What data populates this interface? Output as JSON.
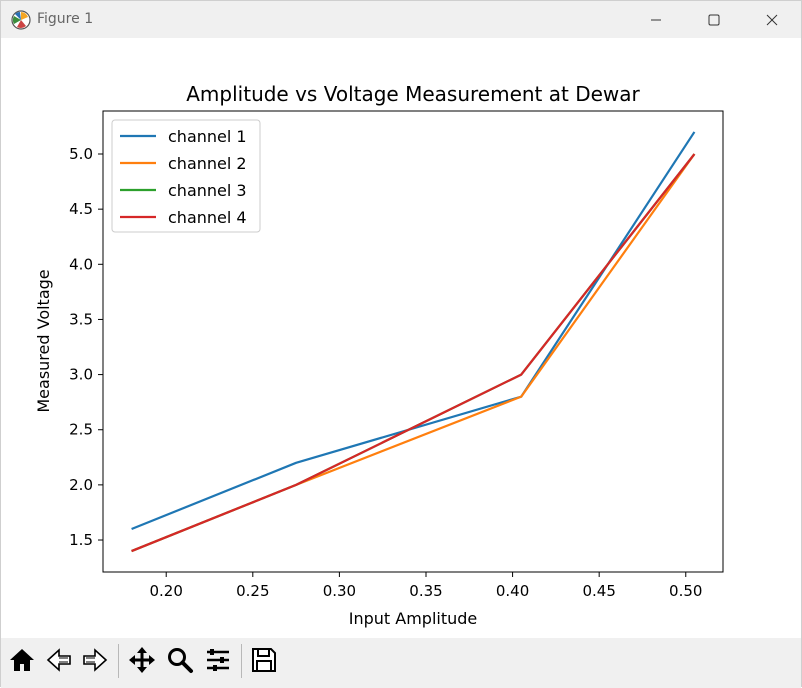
{
  "window": {
    "title": "Figure 1",
    "minimize_icon": "minimize-icon",
    "maximize_icon": "maximize-icon",
    "close_icon": "close-icon"
  },
  "toolbar": {
    "items": [
      {
        "name": "home-button",
        "icon": "home-icon"
      },
      {
        "name": "back-button",
        "icon": "arrow-left-icon"
      },
      {
        "name": "forward-button",
        "icon": "arrow-right-icon"
      },
      {
        "name": "pan-button",
        "icon": "move-icon"
      },
      {
        "name": "zoom-button",
        "icon": "magnifier-icon"
      },
      {
        "name": "configure-subplots-button",
        "icon": "sliders-icon"
      },
      {
        "name": "save-button",
        "icon": "floppy-disk-icon"
      }
    ]
  },
  "chart_data": {
    "type": "line",
    "title": "Amplitude vs Voltage Measurement at Dewar",
    "xlabel": "Input Amplitude",
    "ylabel": "Measured Voltage",
    "xlim": [
      0.1635,
      0.5215
    ],
    "ylim": [
      1.21,
      5.39
    ],
    "xticks": [
      0.2,
      0.25,
      0.3,
      0.35,
      0.4,
      0.45,
      0.5
    ],
    "xtick_labels": [
      "0.20",
      "0.25",
      "0.30",
      "0.35",
      "0.40",
      "0.45",
      "0.50"
    ],
    "yticks": [
      1.5,
      2.0,
      2.5,
      3.0,
      3.5,
      4.0,
      4.5,
      5.0
    ],
    "ytick_labels": [
      "1.5",
      "2.0",
      "2.5",
      "3.0",
      "3.5",
      "4.0",
      "4.5",
      "5.0"
    ],
    "grid": false,
    "legend_position": "upper-left",
    "series": [
      {
        "name": "channel 1",
        "color": "#1f77b4",
        "x": [
          0.18,
          0.275,
          0.405,
          0.505
        ],
        "y": [
          1.6,
          2.2,
          2.8,
          5.2
        ]
      },
      {
        "name": "channel 2",
        "color": "#ff7f0e",
        "x": [
          0.18,
          0.275,
          0.405,
          0.505
        ],
        "y": [
          1.4,
          2.0,
          2.8,
          5.0
        ]
      },
      {
        "name": "channel 3",
        "color": "#2ca02c",
        "x": [
          0.18,
          0.275,
          0.405,
          0.505
        ],
        "y": [
          1.4,
          2.0,
          3.0,
          5.0
        ]
      },
      {
        "name": "channel 4",
        "color": "#d62728",
        "x": [
          0.18,
          0.275,
          0.405,
          0.505
        ],
        "y": [
          1.4,
          2.0,
          3.0,
          5.0
        ]
      }
    ]
  }
}
